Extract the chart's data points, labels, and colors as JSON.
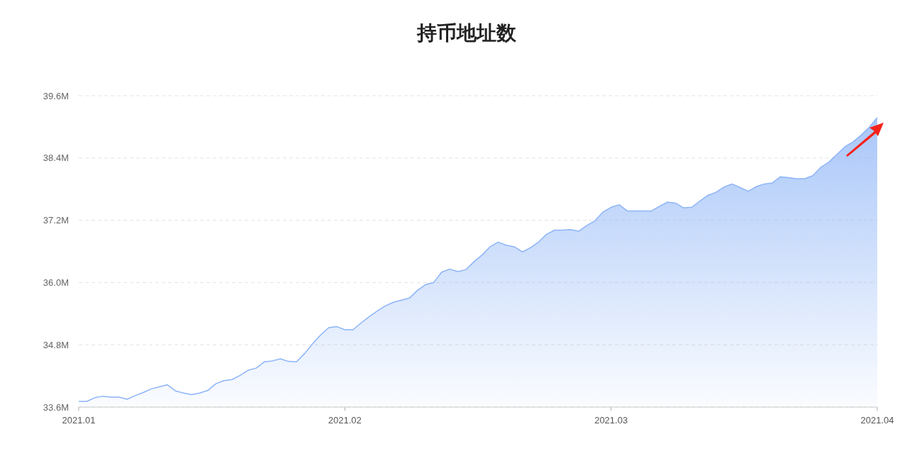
{
  "chart_data": {
    "type": "area",
    "title": "持币地址数",
    "categories": [
      "2021.01",
      null,
      null,
      null,
      null,
      null,
      null,
      null,
      null,
      null,
      null,
      null,
      null,
      null,
      null,
      null,
      null,
      null,
      null,
      null,
      null,
      null,
      null,
      null,
      null,
      null,
      null,
      null,
      null,
      null,
      null,
      null,
      null,
      "2021.02",
      null,
      null,
      null,
      null,
      null,
      null,
      null,
      null,
      null,
      null,
      null,
      null,
      null,
      null,
      null,
      null,
      null,
      null,
      null,
      null,
      null,
      null,
      null,
      null,
      null,
      null,
      null,
      null,
      null,
      null,
      null,
      null,
      "2021.03",
      null,
      null,
      null,
      null,
      null,
      null,
      null,
      null,
      null,
      null,
      null,
      null,
      null,
      null,
      null,
      null,
      null,
      null,
      null,
      null,
      null,
      null,
      null,
      null,
      null,
      null,
      null,
      null,
      null,
      null,
      null,
      null,
      "2021.04"
    ],
    "series": [
      {
        "color": "#8db4f7",
        "values": [
          33.71,
          33.71,
          33.78,
          33.81,
          33.79,
          33.79,
          33.75,
          33.82,
          33.88,
          33.95,
          33.99,
          34.03,
          33.91,
          33.87,
          33.84,
          33.87,
          33.92,
          34.05,
          34.11,
          34.13,
          34.21,
          34.31,
          34.35,
          34.47,
          34.49,
          34.53,
          34.48,
          34.47,
          34.63,
          34.82,
          34.99,
          35.13,
          35.15,
          35.09,
          35.09,
          35.22,
          35.34,
          35.45,
          35.55,
          35.62,
          35.66,
          35.7,
          35.85,
          35.96,
          36.0,
          36.2,
          36.26,
          36.21,
          36.25,
          36.4,
          36.53,
          36.69,
          36.78,
          36.72,
          36.69,
          36.59,
          36.67,
          36.78,
          36.93,
          37.01,
          37.01,
          37.02,
          36.99,
          37.1,
          37.19,
          37.36,
          37.45,
          37.5,
          37.38,
          37.38,
          37.38,
          37.38,
          37.47,
          37.55,
          37.53,
          37.44,
          37.45,
          37.57,
          37.68,
          37.74,
          37.84,
          37.9,
          37.83,
          37.76,
          37.85,
          37.9,
          37.92,
          38.04,
          38.02,
          38.0,
          38.0,
          38.06,
          38.22,
          38.32,
          38.47,
          38.62,
          38.71,
          38.84,
          38.99,
          39.18
        ]
      }
    ],
    "ylim": [
      33.6,
      39.6
    ],
    "yticks": [
      {
        "value": 33.6,
        "label": "33.6M"
      },
      {
        "value": 34.8,
        "label": "34.8M"
      },
      {
        "value": 36.0,
        "label": "36.0M"
      },
      {
        "value": 37.2,
        "label": "37.2M"
      },
      {
        "value": 38.4,
        "label": "38.4M"
      },
      {
        "value": 39.6,
        "label": "39.6M"
      }
    ],
    "grid": "y"
  }
}
